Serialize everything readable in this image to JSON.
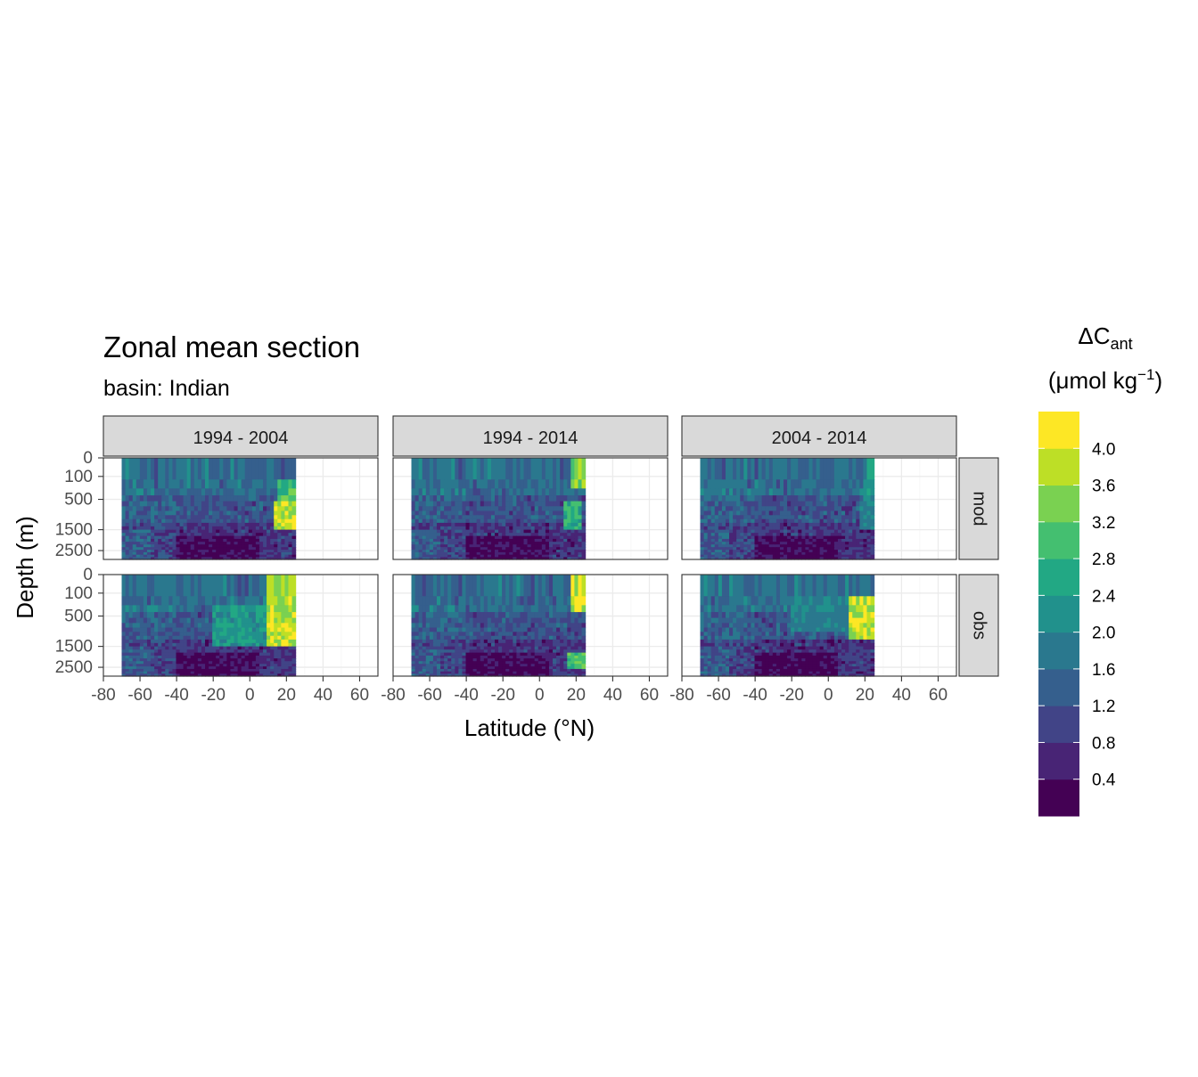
{
  "chart_data": {
    "type": "heatmap",
    "subtype": "filled-contour section (faceted)",
    "title": "Zonal mean section",
    "subtitle": "basin: Indian",
    "xlabel": "Latitude (°N)",
    "ylabel": "Depth (m)",
    "xlim": [
      -80,
      70
    ],
    "x_ticks": [
      -80,
      -60,
      -40,
      -20,
      0,
      20,
      40,
      60
    ],
    "x_tick_labels": [
      "-80",
      "-60",
      "-40",
      "-20",
      "0",
      "20",
      "40",
      "60"
    ],
    "y_ticks": [
      0,
      100,
      500,
      1500,
      2500
    ],
    "y_tick_labels": [
      "0",
      "100",
      "500",
      "1500",
      "2500"
    ],
    "y_reversed": true,
    "y_scale": "sqrt",
    "ylim": [
      0,
      3000
    ],
    "grid": true,
    "facet_columns": [
      "1994 - 2004",
      "1994 - 2014",
      "2004 - 2014"
    ],
    "facet_rows": [
      "mod",
      "obs"
    ],
    "data_extent": {
      "lat": [
        -70,
        25
      ],
      "depth": [
        0,
        3000
      ]
    },
    "legend": {
      "title_main": "ΔC",
      "title_sub": "ant",
      "unit_prefix": "(μmol kg",
      "unit_exp": "−1",
      "unit_suffix": ")",
      "position": "right",
      "breaks": [
        0.4,
        0.8,
        1.2,
        1.6,
        2.0,
        2.4,
        2.8,
        3.2,
        3.6,
        4.0
      ],
      "labels": [
        "0.4",
        "0.8",
        "1.2",
        "1.6",
        "2.0",
        "2.4",
        "2.8",
        "3.2",
        "3.6",
        "4.0"
      ],
      "colors": [
        "#440154",
        "#482475",
        "#414487",
        "#355f8d",
        "#2a788e",
        "#21918c",
        "#22a884",
        "#44bf70",
        "#7ad151",
        "#bddf26",
        "#fde725"
      ]
    },
    "panels": [
      {
        "column": "1994 - 2004",
        "row": "mod",
        "note": "high values (>4) at 10–25°N, 500–1500 m; lower interior"
      },
      {
        "column": "1994 - 2014",
        "row": "mod",
        "note": "moderate values near 20–25°N in upper ocean"
      },
      {
        "column": "2004 - 2014",
        "row": "mod",
        "note": "low values throughout, slight increase near 20°N"
      },
      {
        "column": "1994 - 2004",
        "row": "obs",
        "note": "very high values (>4) at 10–25°N surface to 1500 m"
      },
      {
        "column": "1994 - 2014",
        "row": "obs",
        "note": "moderate to high values near 20–25°N"
      },
      {
        "column": "2004 - 2014",
        "row": "obs",
        "note": "high values (>4) near 15–25°N at 300–1000 m"
      }
    ]
  }
}
